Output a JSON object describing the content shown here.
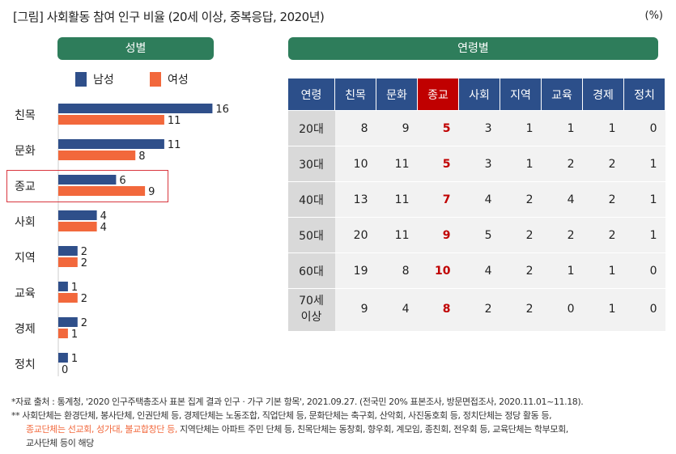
{
  "title": "[그림] 사회활동 참여 인구 비율 (20세 이상, 중복응답, 2020년)",
  "unit": "(%)",
  "panel_gender": "성별",
  "panel_age": "연령별",
  "colors": {
    "male": "#2f4f8a",
    "female": "#f2683c",
    "highlight": "#c00000"
  },
  "chart_data": {
    "type": "bar",
    "orientation": "horizontal",
    "categories": [
      "친목",
      "문화",
      "종교",
      "사회",
      "지역",
      "교육",
      "경제",
      "정치"
    ],
    "series": [
      {
        "name": "남성",
        "values": [
          16,
          11,
          6,
          4,
          2,
          1,
          2,
          1
        ]
      },
      {
        "name": "여성",
        "values": [
          11,
          8,
          9,
          4,
          2,
          2,
          1,
          0
        ]
      }
    ],
    "highlight": "종교",
    "legend": "top"
  },
  "table": {
    "headers": [
      "연령",
      "친목",
      "문화",
      "종교",
      "사회",
      "지역",
      "교육",
      "경제",
      "정치"
    ],
    "rows": [
      {
        "age": "20대",
        "v": [
          "8",
          "9",
          "5",
          "3",
          "1",
          "1",
          "1",
          "0"
        ]
      },
      {
        "age": "30대",
        "v": [
          "10",
          "11",
          "5",
          "3",
          "1",
          "2",
          "2",
          "1"
        ]
      },
      {
        "age": "40대",
        "v": [
          "13",
          "11",
          "7",
          "4",
          "2",
          "4",
          "2",
          "1"
        ]
      },
      {
        "age": "50대",
        "v": [
          "20",
          "11",
          "9",
          "5",
          "2",
          "2",
          "2",
          "1"
        ]
      },
      {
        "age": "60대",
        "v": [
          "19",
          "8",
          "10",
          "4",
          "2",
          "1",
          "1",
          "0"
        ]
      },
      {
        "age": "70세 이상",
        "v": [
          "9",
          "4",
          "8",
          "2",
          "2",
          "0",
          "1",
          "0"
        ]
      }
    ]
  },
  "notes": {
    "source": "*자료 출처 : 통계청, '2020 인구주택총조사 표본 집계 결과 인구 · 가구 기본 항목', 2021.09.27. (전국민 20% 표본조사, 방문면접조사, 2020.11.01~11.18).",
    "n2a": "** 사회단체는 환경단체, 봉사단체, 인권단체 등, 경제단체는 노동조합, 직업단체 등, 문화단체는 축구회, 산악회, 사진동호회 등, 정치단체는 정당 활동 등,",
    "n2b_highlight": "종교단체는 선교회, 성가대, 불교합창단 등,",
    "n2b": " 지역단체는 아파트 주민 단체 등, 친목단체는 동창회, 향우회, 계모임, 종친회, 전우회 등, 교육단체는 학부모회,",
    "n2c": "교사단체 등이 해당"
  }
}
